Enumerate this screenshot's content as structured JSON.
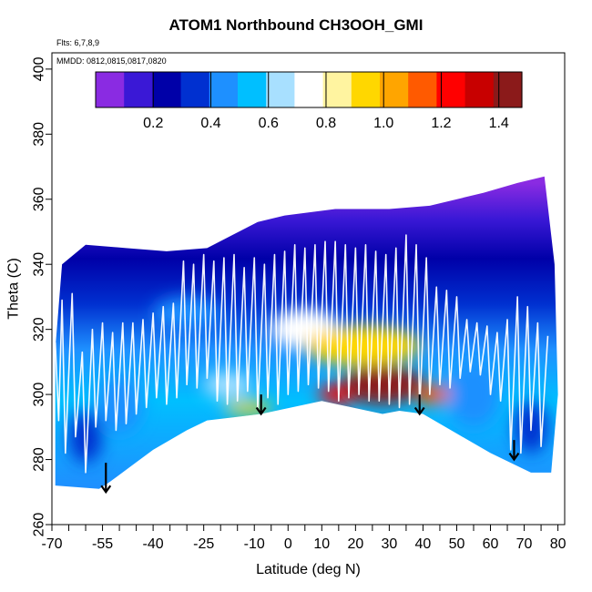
{
  "title": "ATOM1 Northbound CH3OOH_GMI",
  "flights_label": "Flts: 6,7,8,9",
  "mmdd_label": "MMDD: 0812,0815,0817,0820",
  "chart_data": {
    "type": "heatmap",
    "title": "ATOM1 Northbound CH3OOH_GMI",
    "xlabel": "Latitude (deg N)",
    "ylabel": "Theta (C)",
    "xlim": [
      -70,
      82
    ],
    "ylim": [
      260,
      405
    ],
    "x_tick_labels": [
      "-70",
      "-55",
      "-40",
      "-25",
      "-10",
      "0",
      "10",
      "20",
      "30",
      "40",
      "50",
      "60",
      "70",
      "80"
    ],
    "x_tick_values": [
      -70,
      -55,
      -40,
      -25,
      -10,
      0,
      10,
      20,
      30,
      40,
      50,
      60,
      70,
      80
    ],
    "x_minor_tick_values": [
      -65,
      -60,
      -50,
      -45,
      -35,
      -30,
      -20,
      -15,
      -5,
      5,
      15,
      25,
      35,
      45,
      55,
      65,
      75
    ],
    "y_tick_labels": [
      "260",
      "280",
      "300",
      "320",
      "340",
      "360",
      "380",
      "400"
    ],
    "y_tick_values": [
      260,
      280,
      300,
      320,
      340,
      360,
      380,
      400
    ],
    "colorbar": {
      "range": [
        0.0,
        1.48
      ],
      "tick_values": [
        0.2,
        0.4,
        0.6,
        0.8,
        1.0,
        1.2,
        1.4
      ],
      "tick_labels": [
        "0.2",
        "0.4",
        "0.6",
        "0.8",
        "1.0",
        "1.2",
        "1.4"
      ],
      "colors": [
        "#8a2be2",
        "#3a18d6",
        "#0000a8",
        "#0030d0",
        "#1e90ff",
        "#00bfff",
        "#a8e0ff",
        "#ffffff",
        "#fff4a0",
        "#ffd700",
        "#ffa500",
        "#ff5a00",
        "#ff0000",
        "#c80000",
        "#8b1a1a"
      ]
    },
    "lower_boundary": {
      "lat": [
        -69,
        -56,
        -53,
        -40,
        -30,
        -24,
        -8,
        10,
        28,
        33,
        40,
        50,
        60,
        66,
        72,
        78
      ],
      "theta": [
        272,
        271,
        273,
        283,
        289,
        292,
        294,
        298,
        294,
        295,
        294,
        288,
        282,
        279,
        276,
        276
      ]
    },
    "upper_boundary": {
      "lat": [
        -69,
        -67,
        -60,
        -48,
        -36,
        -24,
        -9,
        -1,
        14,
        30,
        42,
        58,
        68,
        76,
        79,
        80
      ],
      "theta": [
        314,
        340,
        346,
        345,
        344,
        345,
        353,
        355,
        357,
        357,
        358,
        362,
        365,
        367,
        340,
        300
      ]
    },
    "hotspots": [
      {
        "lat": 28,
        "theta": 303,
        "value": 1.42,
        "width": 24,
        "height": 12
      },
      {
        "lat": 15,
        "theta": 300,
        "value": 1.25,
        "width": 12,
        "height": 6
      },
      {
        "lat": 43,
        "theta": 300,
        "value": 1.12,
        "width": 10,
        "height": 6
      },
      {
        "lat": -12,
        "theta": 296,
        "value": 0.98,
        "width": 14,
        "height": 4
      },
      {
        "lat": 22,
        "theta": 315,
        "value": 0.95,
        "width": 34,
        "height": 12
      },
      {
        "lat": 5,
        "theta": 320,
        "value": 0.78,
        "width": 20,
        "height": 12
      },
      {
        "lat": -18,
        "theta": 303,
        "value": 0.66,
        "width": 14,
        "height": 8
      },
      {
        "lat": 55,
        "theta": 300,
        "value": 0.48,
        "width": 16,
        "height": 20
      },
      {
        "lat": -50,
        "theta": 297,
        "value": 0.46,
        "width": 14,
        "height": 18
      },
      {
        "lat": -60,
        "theta": 287,
        "value": 0.36,
        "width": 10,
        "height": 16
      },
      {
        "lat": 72,
        "theta": 290,
        "value": 0.38,
        "width": 10,
        "height": 16
      },
      {
        "lat": -30,
        "theta": 325,
        "value": 0.4,
        "width": 20,
        "height": 10
      }
    ],
    "flight_track": {
      "lat": [
        -69,
        -68,
        -67,
        -66,
        -64,
        -63,
        -61,
        -60,
        -58,
        -57,
        -55,
        -54,
        -52,
        -51,
        -49,
        -48,
        -46,
        -45,
        -43,
        -42,
        -40,
        -39,
        -37,
        -36,
        -34,
        -33,
        -31,
        -30,
        -28,
        -27,
        -25,
        -24,
        -22,
        -21,
        -19,
        -18,
        -16,
        -15,
        -13,
        -12,
        -10,
        -9,
        -7,
        -6,
        -4,
        -3,
        -1,
        0,
        2,
        3,
        5,
        6,
        8,
        9,
        11,
        12,
        14,
        15,
        17,
        18,
        20,
        21,
        23,
        24,
        26,
        27,
        29,
        30,
        32,
        33,
        35,
        36,
        38,
        39,
        41,
        42,
        44,
        45,
        47,
        48,
        50,
        51,
        53,
        54,
        56,
        57,
        59,
        60,
        62,
        63,
        65,
        66,
        68,
        69,
        71,
        72,
        74,
        75,
        77
      ],
      "theta": [
        316,
        292,
        329,
        282,
        331,
        287,
        313,
        276,
        320,
        290,
        322,
        292,
        319,
        289,
        322,
        291,
        322,
        294,
        323,
        296,
        325,
        299,
        327,
        297,
        328,
        299,
        341,
        303,
        340,
        302,
        343,
        305,
        341,
        298,
        342,
        297,
        343,
        298,
        339,
        301,
        342,
        296,
        340,
        299,
        343,
        297,
        344,
        300,
        346,
        301,
        345,
        303,
        346,
        302,
        347,
        301,
        347,
        298,
        346,
        299,
        345,
        300,
        346,
        298,
        344,
        298,
        343,
        297,
        345,
        296,
        349,
        297,
        346,
        296,
        342,
        300,
        333,
        303,
        332,
        302,
        330,
        305,
        323,
        307,
        322,
        306,
        321,
        300,
        319,
        298,
        323,
        283,
        330,
        282,
        327,
        289,
        322,
        284,
        318
      ]
    },
    "arrows": [
      {
        "lat": -54,
        "theta_top": 279,
        "theta_tip": 270
      },
      {
        "lat": -8,
        "theta_top": 300,
        "theta_tip": 294
      },
      {
        "lat": 39,
        "theta_top": 300,
        "theta_tip": 294
      },
      {
        "lat": 67,
        "theta_top": 286,
        "theta_tip": 280
      }
    ]
  }
}
